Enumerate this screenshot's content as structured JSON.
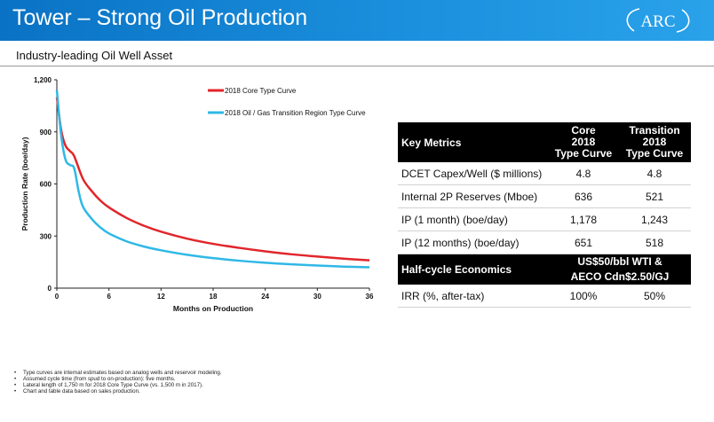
{
  "header": {
    "title": "Tower – Strong Oil Production",
    "logo_text": "ARC"
  },
  "subtitle": "Industry-leading Oil Well Asset",
  "chart_data": {
    "type": "line",
    "xlabel": "Months on Production",
    "ylabel": "Production Rate (boe/day)",
    "xlim": [
      0,
      36
    ],
    "ylim": [
      0,
      1200
    ],
    "xticks": [
      0,
      6,
      12,
      18,
      24,
      30,
      36
    ],
    "yticks": [
      0,
      300,
      600,
      900,
      1200
    ],
    "ytick_labels": [
      "0",
      "300",
      "600",
      "900",
      "1,200"
    ],
    "grid": false,
    "legend_position": "top-right",
    "series": [
      {
        "name": "2018 Core Type Curve",
        "color": "#e0262b",
        "x": [
          0,
          0.5,
          1,
          1.5,
          2,
          3,
          4,
          5,
          6,
          8,
          10,
          12,
          15,
          18,
          21,
          24,
          27,
          30,
          33,
          36
        ],
        "y": [
          1100,
          910,
          820,
          790,
          760,
          630,
          560,
          505,
          465,
          405,
          360,
          325,
          285,
          255,
          232,
          212,
          195,
          182,
          170,
          160
        ]
      },
      {
        "name": "2018 Oil / Gas Transition Region Type Curve",
        "color": "#2fb8e6",
        "x": [
          0,
          0.5,
          1,
          1.5,
          2,
          2.5,
          3,
          4,
          5,
          6,
          8,
          10,
          12,
          15,
          18,
          21,
          24,
          27,
          30,
          33,
          36
        ],
        "y": [
          1140,
          880,
          740,
          710,
          690,
          560,
          470,
          400,
          350,
          315,
          270,
          240,
          218,
          192,
          173,
          158,
          146,
          137,
          130,
          124,
          120
        ]
      }
    ]
  },
  "table": {
    "header": {
      "label": "Key Metrics",
      "col1": [
        "Core",
        "2018",
        "Type Curve"
      ],
      "col2": [
        "Transition",
        "2018",
        "Type Curve"
      ]
    },
    "rows": [
      {
        "label": "DCET Capex/Well ($ millions)",
        "v1": "4.8",
        "v2": "4.8"
      },
      {
        "label": "Internal 2P Reserves (Mboe)",
        "v1": "636",
        "v2": "521"
      },
      {
        "label": "IP (1 month) (boe/day)",
        "v1": "1,178",
        "v2": "1,243"
      },
      {
        "label": "IP (12 months) (boe/day)",
        "v1": "651",
        "v2": "518"
      }
    ],
    "header2": {
      "label": "Half-cycle Economics",
      "line1": "US$50/bbl WTI &",
      "line2": "AECO Cdn$2.50/GJ"
    },
    "rows2": [
      {
        "label": "IRR (%, after-tax)",
        "v1": "100%",
        "v2": "50%"
      }
    ]
  },
  "notes": [
    "Type curves are internal estimates based on analog wells and reservoir modeling.",
    "Assumed cycle time (from spud to on-production): five months.",
    "Lateral length of 1,750 m for 2018 Core Type Curve (vs. 1,500 m in 2017).",
    "Chart and table data based on sales production."
  ]
}
